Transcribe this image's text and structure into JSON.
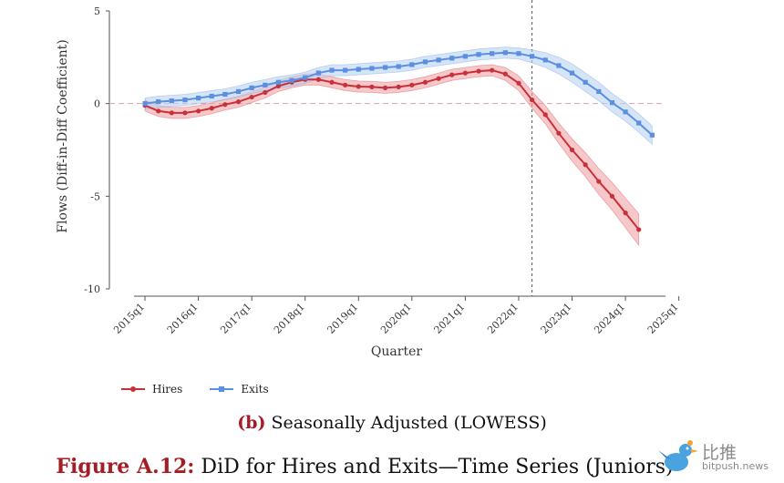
{
  "chart_data": {
    "type": "line",
    "xlabel": "Quarter",
    "ylabel": "Flows (Diff-in-Diff Coefficient)",
    "ylim": [
      -10,
      5
    ],
    "yticks": [
      5,
      0,
      -5,
      -10
    ],
    "x_ticks": [
      "2015q1",
      "2016q1",
      "2017q1",
      "2018q1",
      "2019q1",
      "2020q1",
      "2021q1",
      "2022q1",
      "2023q1",
      "2024q1",
      "2025q1"
    ],
    "x_start_quarter": 1,
    "x_end_quarter": 41,
    "reference_line_y": 0,
    "vertical_line_x": 31,
    "legend_position": "bottom-left",
    "series": [
      {
        "name": "Hires",
        "color": "#c8313a",
        "band_color": "#f0a3a6",
        "x_start": 2,
        "values": [
          -0.1,
          -0.4,
          -0.5,
          -0.5,
          -0.4,
          -0.25,
          -0.05,
          0.1,
          0.35,
          0.6,
          0.95,
          1.15,
          1.3,
          1.3,
          1.15,
          1.0,
          0.92,
          0.9,
          0.85,
          0.9,
          1.0,
          1.15,
          1.35,
          1.55,
          1.65,
          1.75,
          1.8,
          1.6,
          1.1,
          0.2,
          -0.6,
          -1.6,
          -2.5,
          -3.3,
          -4.2,
          -5.0,
          -5.9,
          -6.8
        ],
        "band_halfwidth": [
          0.3,
          0.3,
          0.3,
          0.3,
          0.3,
          0.3,
          0.3,
          0.3,
          0.3,
          0.3,
          0.3,
          0.3,
          0.3,
          0.3,
          0.3,
          0.3,
          0.3,
          0.3,
          0.3,
          0.3,
          0.3,
          0.3,
          0.3,
          0.3,
          0.3,
          0.3,
          0.3,
          0.35,
          0.4,
          0.45,
          0.5,
          0.55,
          0.6,
          0.65,
          0.7,
          0.75,
          0.8,
          0.85
        ]
      },
      {
        "name": "Exits",
        "color": "#5b8fe0",
        "band_color": "#b9d3f2",
        "x_start": 2,
        "values": [
          0.0,
          0.1,
          0.15,
          0.2,
          0.3,
          0.4,
          0.5,
          0.65,
          0.85,
          1.0,
          1.15,
          1.25,
          1.4,
          1.65,
          1.8,
          1.8,
          1.85,
          1.9,
          1.95,
          2.0,
          2.1,
          2.25,
          2.35,
          2.45,
          2.55,
          2.65,
          2.7,
          2.75,
          2.7,
          2.55,
          2.35,
          2.05,
          1.65,
          1.15,
          0.65,
          0.05,
          -0.45,
          -1.05,
          -1.7
        ],
        "band_halfwidth": [
          0.3,
          0.3,
          0.3,
          0.3,
          0.3,
          0.3,
          0.3,
          0.3,
          0.3,
          0.3,
          0.3,
          0.3,
          0.3,
          0.3,
          0.3,
          0.3,
          0.3,
          0.3,
          0.3,
          0.3,
          0.3,
          0.3,
          0.3,
          0.3,
          0.3,
          0.3,
          0.3,
          0.3,
          0.3,
          0.35,
          0.4,
          0.45,
          0.5,
          0.5,
          0.5,
          0.5,
          0.5,
          0.5,
          0.5
        ]
      }
    ]
  },
  "subcaption": {
    "label": "(b)",
    "text": " Seasonally Adjusted (LOWESS)"
  },
  "figure_caption": {
    "label": "Figure A.12:",
    "text": " DiD for Hires and Exits—Time Series (Juniors)"
  },
  "watermark": {
    "name": "比推",
    "domain": "bitpush.news"
  }
}
